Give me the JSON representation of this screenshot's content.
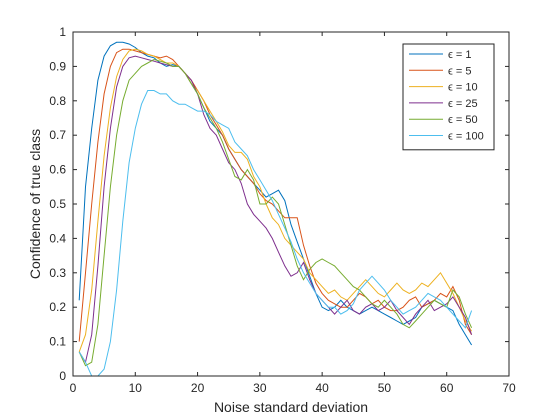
{
  "chart_data": {
    "type": "line",
    "title": "",
    "xlabel": "Noise standard deviation",
    "ylabel": "Confidence of true class",
    "xlim": [
      0,
      70
    ],
    "ylim": [
      0,
      1
    ],
    "xticks": [
      0,
      10,
      20,
      30,
      40,
      50,
      60,
      70
    ],
    "yticks": [
      0,
      0.1,
      0.2,
      0.3,
      0.4,
      0.5,
      0.6,
      0.7,
      0.8,
      0.9,
      1
    ],
    "grid": false,
    "legend_position": "top-right",
    "series": [
      {
        "name": "ϵ = 1",
        "color": "#0072BD",
        "x": [
          1,
          2,
          3,
          4,
          5,
          6,
          7,
          8,
          9,
          10,
          11,
          12,
          13,
          14,
          15,
          16,
          17,
          18,
          19,
          20,
          21,
          22,
          23,
          24,
          25,
          26,
          27,
          28,
          29,
          30,
          31,
          32,
          33,
          34,
          35,
          36,
          37,
          38,
          39,
          40,
          41,
          42,
          43,
          44,
          45,
          46,
          47,
          48,
          49,
          50,
          51,
          52,
          53,
          54,
          55,
          56,
          57,
          58,
          59,
          60,
          61,
          62,
          63,
          64
        ],
        "values": [
          0.22,
          0.55,
          0.72,
          0.86,
          0.93,
          0.96,
          0.97,
          0.97,
          0.965,
          0.955,
          0.94,
          0.93,
          0.925,
          0.91,
          0.9,
          0.905,
          0.9,
          0.88,
          0.85,
          0.82,
          0.78,
          0.74,
          0.72,
          0.7,
          0.66,
          0.63,
          0.6,
          0.58,
          0.56,
          0.54,
          0.52,
          0.53,
          0.54,
          0.51,
          0.44,
          0.39,
          0.34,
          0.29,
          0.24,
          0.2,
          0.19,
          0.2,
          0.22,
          0.2,
          0.19,
          0.18,
          0.19,
          0.2,
          0.19,
          0.18,
          0.17,
          0.16,
          0.15,
          0.16,
          0.17,
          0.2,
          0.21,
          0.22,
          0.21,
          0.2,
          0.19,
          0.15,
          0.12,
          0.09
        ]
      },
      {
        "name": "ϵ = 5",
        "color": "#D95319",
        "x": [
          1,
          2,
          3,
          4,
          5,
          6,
          7,
          8,
          9,
          10,
          11,
          12,
          13,
          14,
          15,
          16,
          17,
          18,
          19,
          20,
          21,
          22,
          23,
          24,
          25,
          26,
          27,
          28,
          29,
          30,
          31,
          32,
          33,
          34,
          35,
          36,
          37,
          38,
          39,
          40,
          41,
          42,
          43,
          44,
          45,
          46,
          47,
          48,
          49,
          50,
          51,
          52,
          53,
          54,
          55,
          56,
          57,
          58,
          59,
          60,
          61,
          62,
          63,
          64
        ],
        "values": [
          0.1,
          0.3,
          0.5,
          0.68,
          0.82,
          0.9,
          0.94,
          0.95,
          0.95,
          0.945,
          0.94,
          0.935,
          0.93,
          0.925,
          0.93,
          0.92,
          0.9,
          0.88,
          0.86,
          0.83,
          0.8,
          0.76,
          0.73,
          0.7,
          0.66,
          0.63,
          0.6,
          0.58,
          0.56,
          0.53,
          0.51,
          0.5,
          0.48,
          0.46,
          0.46,
          0.46,
          0.38,
          0.32,
          0.27,
          0.24,
          0.22,
          0.21,
          0.2,
          0.2,
          0.22,
          0.24,
          0.23,
          0.21,
          0.22,
          0.2,
          0.19,
          0.19,
          0.2,
          0.22,
          0.23,
          0.2,
          0.21,
          0.22,
          0.24,
          0.23,
          0.26,
          0.22,
          0.15,
          0.12
        ]
      },
      {
        "name": "ϵ = 10",
        "color": "#EDB120",
        "x": [
          1,
          2,
          3,
          4,
          5,
          6,
          7,
          8,
          9,
          10,
          11,
          12,
          13,
          14,
          15,
          16,
          17,
          18,
          19,
          20,
          21,
          22,
          23,
          24,
          25,
          26,
          27,
          28,
          29,
          30,
          31,
          32,
          33,
          34,
          35,
          36,
          37,
          38,
          39,
          40,
          41,
          42,
          43,
          44,
          45,
          46,
          47,
          48,
          49,
          50,
          51,
          52,
          53,
          54,
          55,
          56,
          57,
          58,
          59,
          60,
          61,
          62,
          63,
          64
        ],
        "values": [
          0.07,
          0.12,
          0.25,
          0.45,
          0.64,
          0.78,
          0.87,
          0.92,
          0.945,
          0.95,
          0.945,
          0.935,
          0.93,
          0.92,
          0.91,
          0.91,
          0.9,
          0.88,
          0.85,
          0.83,
          0.8,
          0.77,
          0.74,
          0.71,
          0.67,
          0.65,
          0.65,
          0.63,
          0.58,
          0.55,
          0.5,
          0.46,
          0.44,
          0.4,
          0.38,
          0.36,
          0.34,
          0.3,
          0.28,
          0.26,
          0.24,
          0.25,
          0.23,
          0.22,
          0.24,
          0.26,
          0.28,
          0.26,
          0.24,
          0.23,
          0.25,
          0.27,
          0.25,
          0.24,
          0.25,
          0.27,
          0.26,
          0.28,
          0.3,
          0.27,
          0.24,
          0.2,
          0.16,
          0.13
        ]
      },
      {
        "name": "ϵ = 25",
        "color": "#7E2F8E",
        "x": [
          1,
          2,
          3,
          4,
          5,
          6,
          7,
          8,
          9,
          10,
          11,
          12,
          13,
          14,
          15,
          16,
          17,
          18,
          19,
          20,
          21,
          22,
          23,
          24,
          25,
          26,
          27,
          28,
          29,
          30,
          31,
          32,
          33,
          34,
          35,
          36,
          37,
          38,
          39,
          40,
          41,
          42,
          43,
          44,
          45,
          46,
          47,
          48,
          49,
          50,
          51,
          52,
          53,
          54,
          55,
          56,
          57,
          58,
          59,
          60,
          61,
          62,
          63,
          64
        ],
        "values": [
          0.07,
          0.04,
          0.12,
          0.32,
          0.55,
          0.72,
          0.84,
          0.9,
          0.925,
          0.93,
          0.925,
          0.92,
          0.915,
          0.91,
          0.905,
          0.9,
          0.9,
          0.88,
          0.86,
          0.82,
          0.76,
          0.72,
          0.7,
          0.66,
          0.62,
          0.6,
          0.56,
          0.5,
          0.47,
          0.45,
          0.43,
          0.4,
          0.36,
          0.32,
          0.29,
          0.3,
          0.33,
          0.28,
          0.24,
          0.22,
          0.2,
          0.18,
          0.2,
          0.22,
          0.19,
          0.18,
          0.2,
          0.21,
          0.19,
          0.2,
          0.22,
          0.19,
          0.17,
          0.15,
          0.18,
          0.2,
          0.22,
          0.19,
          0.2,
          0.21,
          0.23,
          0.2,
          0.17,
          0.12
        ]
      },
      {
        "name": "ϵ = 50",
        "color": "#77AC30",
        "x": [
          1,
          2,
          3,
          4,
          5,
          6,
          7,
          8,
          9,
          10,
          11,
          12,
          13,
          14,
          15,
          16,
          17,
          18,
          19,
          20,
          21,
          22,
          23,
          24,
          25,
          26,
          27,
          28,
          29,
          30,
          31,
          32,
          33,
          34,
          35,
          36,
          37,
          38,
          39,
          40,
          41,
          42,
          43,
          44,
          45,
          46,
          47,
          48,
          49,
          50,
          51,
          52,
          53,
          54,
          55,
          56,
          57,
          58,
          59,
          60,
          61,
          62,
          63,
          64
        ],
        "values": [
          0.07,
          0.03,
          0.04,
          0.15,
          0.35,
          0.55,
          0.7,
          0.8,
          0.86,
          0.88,
          0.9,
          0.91,
          0.92,
          0.915,
          0.91,
          0.9,
          0.9,
          0.88,
          0.85,
          0.82,
          0.78,
          0.75,
          0.72,
          0.68,
          0.63,
          0.58,
          0.57,
          0.6,
          0.57,
          0.5,
          0.5,
          0.52,
          0.5,
          0.44,
          0.38,
          0.32,
          0.28,
          0.31,
          0.33,
          0.34,
          0.33,
          0.32,
          0.3,
          0.28,
          0.26,
          0.25,
          0.23,
          0.21,
          0.2,
          0.22,
          0.2,
          0.18,
          0.15,
          0.14,
          0.16,
          0.18,
          0.2,
          0.22,
          0.21,
          0.2,
          0.25,
          0.23,
          0.18,
          0.14
        ]
      },
      {
        "name": "ϵ = 100",
        "color": "#4DBEEE",
        "x": [
          1,
          2,
          3,
          4,
          5,
          6,
          7,
          8,
          9,
          10,
          11,
          12,
          13,
          14,
          15,
          16,
          17,
          18,
          19,
          20,
          21,
          22,
          23,
          24,
          25,
          26,
          27,
          28,
          29,
          30,
          31,
          32,
          33,
          34,
          35,
          36,
          37,
          38,
          39,
          40,
          41,
          42,
          43,
          44,
          45,
          46,
          47,
          48,
          49,
          50,
          51,
          52,
          53,
          54,
          55,
          56,
          57,
          58,
          59,
          60,
          61,
          62,
          63,
          64
        ],
        "values": [
          0.07,
          0.04,
          0.0,
          0.0,
          0.02,
          0.1,
          0.25,
          0.45,
          0.62,
          0.72,
          0.79,
          0.83,
          0.83,
          0.82,
          0.82,
          0.8,
          0.79,
          0.79,
          0.78,
          0.77,
          0.77,
          0.76,
          0.74,
          0.73,
          0.72,
          0.68,
          0.66,
          0.64,
          0.6,
          0.57,
          0.54,
          0.51,
          0.47,
          0.43,
          0.39,
          0.34,
          0.3,
          0.27,
          0.24,
          0.22,
          0.2,
          0.2,
          0.18,
          0.19,
          0.21,
          0.25,
          0.27,
          0.29,
          0.27,
          0.25,
          0.22,
          0.2,
          0.18,
          0.19,
          0.2,
          0.22,
          0.24,
          0.23,
          0.22,
          0.2,
          0.18,
          0.16,
          0.14,
          0.19
        ]
      }
    ]
  }
}
